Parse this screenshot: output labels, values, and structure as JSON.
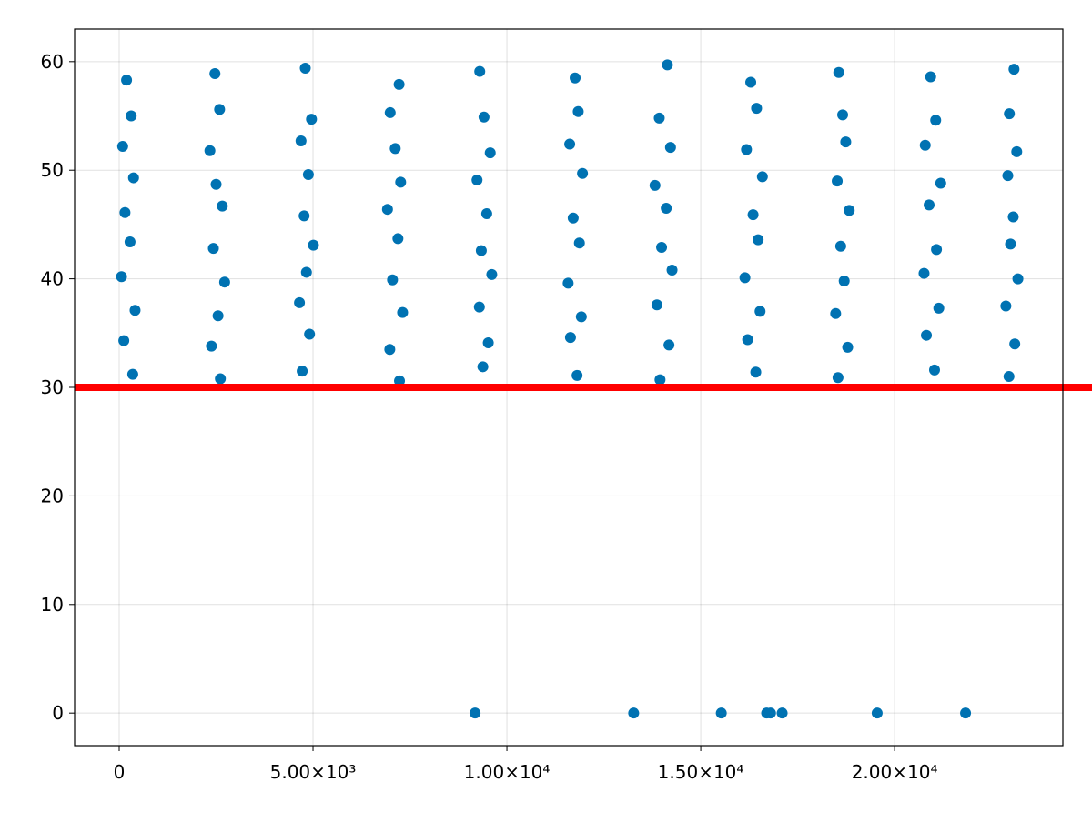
{
  "chart_data": {
    "type": "scatter",
    "x": [
      350,
      2610,
      4720,
      7230,
      9380,
      11810,
      13950,
      16420,
      18540,
      21030,
      22950,
      120,
      2380,
      4910,
      6980,
      9520,
      11640,
      14180,
      16210,
      18790,
      20820,
      23100,
      410,
      2550,
      4650,
      7310,
      9290,
      11920,
      13870,
      16530,
      18480,
      21140,
      22870,
      60,
      2720,
      4830,
      7050,
      9610,
      11580,
      14260,
      16140,
      18700,
      20760,
      23180,
      280,
      2430,
      5010,
      7190,
      9340,
      11870,
      13990,
      16480,
      18610,
      21080,
      22990,
      150,
      2660,
      4770,
      6920,
      9480,
      11710,
      14110,
      16350,
      18830,
      20890,
      23060,
      370,
      2500,
      4880,
      7260,
      9230,
      11950,
      13820,
      16590,
      18520,
      21190,
      22920,
      90,
      2340,
      4690,
      7120,
      9570,
      11620,
      14220,
      16180,
      18740,
      20790,
      23150,
      310,
      2590,
      4960,
      6990,
      9410,
      11840,
      13930,
      16440,
      18660,
      21060,
      22960,
      190,
      2470,
      4800,
      7220,
      9300,
      11760,
      14140,
      16290,
      18560,
      20930,
      23080,
      9180,
      13270,
      15530,
      16700,
      16800,
      17100,
      19550,
      21830
    ],
    "series": [
      {
        "color": "#0072b2",
        "values": [
          31.2,
          30.8,
          31.5,
          30.6,
          31.9,
          31.1,
          30.7,
          31.4,
          30.9,
          31.6,
          31.0,
          34.3,
          33.8,
          34.9,
          33.5,
          34.1,
          34.6,
          33.9,
          34.4,
          33.7,
          34.8,
          34.0,
          37.1,
          36.6,
          37.8,
          36.9,
          37.4,
          36.5,
          37.6,
          37.0,
          36.8,
          37.3,
          37.5,
          40.2,
          39.7,
          40.6,
          39.9,
          40.4,
          39.6,
          40.8,
          40.1,
          39.8,
          40.5,
          40.0,
          43.4,
          42.8,
          43.1,
          43.7,
          42.6,
          43.3,
          42.9,
          43.6,
          43.0,
          42.7,
          43.2,
          46.1,
          46.7,
          45.8,
          46.4,
          46.0,
          45.6,
          46.5,
          45.9,
          46.3,
          46.8,
          45.7,
          49.3,
          48.7,
          49.6,
          48.9,
          49.1,
          49.7,
          48.6,
          49.4,
          49.0,
          48.8,
          49.5,
          52.2,
          51.8,
          52.7,
          52.0,
          51.6,
          52.4,
          52.1,
          51.9,
          52.6,
          52.3,
          51.7,
          55.0,
          55.6,
          54.7,
          55.3,
          54.9,
          55.4,
          54.8,
          55.7,
          55.1,
          54.6,
          55.2,
          58.3,
          58.9,
          59.4,
          57.9,
          59.1,
          58.5,
          59.7,
          58.1,
          59.0,
          58.6,
          59.3,
          0,
          0,
          0,
          0,
          0,
          0,
          0,
          0
        ]
      }
    ],
    "hline": {
      "value": 30,
      "color": "#ff0000"
    },
    "xlim": [
      -1150,
      24340
    ],
    "ylim": [
      -3,
      63
    ],
    "xticks": [
      0,
      {
        "value": 5000,
        "label": "5.00×10³"
      },
      {
        "value": 10000,
        "label": "1.00×10⁴"
      },
      {
        "value": 15000,
        "label": "1.50×10⁴"
      },
      {
        "value": 20000,
        "label": "2.00×10⁴"
      }
    ],
    "yticks": [
      0,
      10,
      20,
      30,
      40,
      50,
      60
    ],
    "grid": true
  }
}
